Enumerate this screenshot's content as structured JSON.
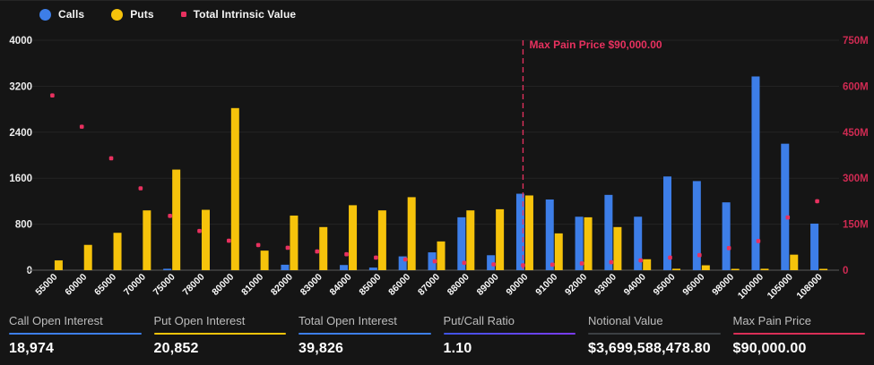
{
  "chart_data": {
    "type": "grouped-bar+scatter",
    "categories": [
      "55000",
      "60000",
      "65000",
      "70000",
      "75000",
      "78000",
      "80000",
      "81000",
      "82000",
      "83000",
      "84000",
      "85000",
      "86000",
      "87000",
      "88000",
      "89000",
      "90000",
      "91000",
      "92000",
      "93000",
      "94000",
      "95000",
      "96000",
      "98000",
      "100000",
      "105000",
      "108000"
    ],
    "series": [
      {
        "name": "Calls",
        "type": "bar",
        "axis": "left",
        "marker": "circle",
        "color": "#3d7ee8",
        "values": [
          0,
          0,
          0,
          0,
          25,
          0,
          0,
          0,
          95,
          0,
          90,
          45,
          240,
          310,
          920,
          260,
          1330,
          1230,
          930,
          1310,
          930,
          1630,
          1550,
          1180,
          3370,
          2200,
          810
        ]
      },
      {
        "name": "Puts",
        "type": "bar",
        "axis": "left",
        "marker": "circle",
        "color": "#f6c30b",
        "values": [
          170,
          440,
          650,
          1040,
          1750,
          1050,
          2820,
          340,
          950,
          750,
          1130,
          1040,
          1270,
          500,
          1040,
          1060,
          1300,
          640,
          920,
          750,
          190,
          25,
          85,
          15,
          25,
          270,
          15
        ]
      },
      {
        "name": "Total Intrinsic Value",
        "type": "scatter",
        "axis": "right",
        "marker": "square",
        "color": "#e8315f",
        "unit": "millions USD",
        "values": [
          570,
          468,
          365,
          267,
          177,
          128,
          96,
          82,
          73,
          61,
          52,
          41,
          35,
          29,
          24,
          19,
          16,
          18,
          22,
          26,
          32,
          41,
          49,
          72,
          95,
          172,
          225
        ]
      }
    ],
    "left_axis": {
      "tick_values": [
        0,
        800,
        1600,
        2400,
        3200,
        4000
      ],
      "max": 4000,
      "text_color": "#ececec"
    },
    "right_axis": {
      "tick_values": [
        0,
        150,
        300,
        450,
        600,
        750
      ],
      "tick_labels": [
        "0",
        "150M",
        "300M",
        "450M",
        "600M",
        "750M"
      ],
      "max": 750,
      "text_color": "#cf2a52"
    },
    "max_pain_line": {
      "category": "90000",
      "label": "Max Pain Price $90,000.00",
      "color": "#e8315f"
    },
    "grid": true,
    "grid_color": "#242424",
    "baseline_color": "#4d4d4d",
    "xlabel_color": "#fafafa",
    "legend_position": "top-left"
  },
  "stats": {
    "items": [
      {
        "label": "Call Open Interest",
        "value": "18,974",
        "underline": "#3d7ee8"
      },
      {
        "label": "Put Open Interest",
        "value": "20,852",
        "underline": "#f6c30b"
      },
      {
        "label": "Total Open Interest",
        "value": "39,826",
        "underline": "#3d7ee8"
      },
      {
        "label": "Put/Call Ratio",
        "value": "1.10",
        "underline": "linear-gradient(90deg,#3f55e6,#7b3bf2)"
      },
      {
        "label": "Notional Value",
        "value": "$3,699,588,478.80",
        "underline": "#3c4043"
      },
      {
        "label": "Max Pain Price",
        "value": "$90,000.00",
        "underline": "#d92e56"
      }
    ]
  }
}
